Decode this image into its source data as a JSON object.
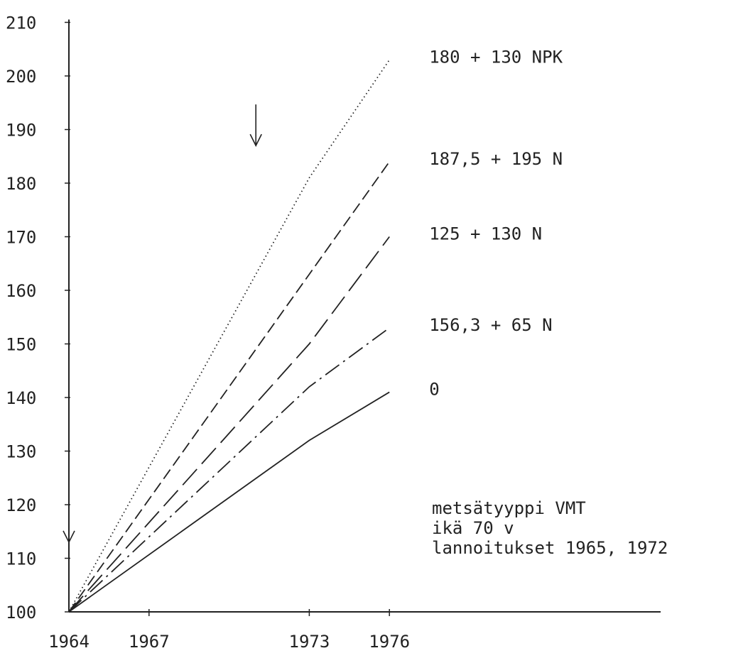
{
  "chart_data": {
    "type": "line",
    "title": "",
    "xlabel": "",
    "ylabel": "",
    "xlim": [
      1964,
      1983
    ],
    "ylim": [
      100,
      210
    ],
    "x_ticks": [
      1964,
      1967,
      1973,
      1976
    ],
    "y_ticks": [
      100,
      110,
      120,
      130,
      140,
      150,
      160,
      170,
      180,
      190,
      200,
      210
    ],
    "grid": false,
    "x": [
      1964,
      1973,
      1976
    ],
    "series": [
      {
        "name": "180 + 130 NPK",
        "values": [
          100,
          181,
          203
        ],
        "line_style": "dotted"
      },
      {
        "name": "187,5 + 195 N",
        "values": [
          100,
          163,
          184
        ],
        "line_style": "dashed"
      },
      {
        "name": "125 + 130 N",
        "values": [
          100,
          150,
          170
        ],
        "line_style": "long-dash"
      },
      {
        "name": "156,3 + 65 N",
        "values": [
          100,
          142,
          153
        ],
        "line_style": "dash-dot"
      },
      {
        "name": "0",
        "values": [
          100,
          132,
          141
        ],
        "line_style": "solid"
      }
    ],
    "annotations": {
      "note_lines": [
        "metsätyyppi VMT",
        "ikä 70 v",
        "lannoitukset 1965, 1972"
      ],
      "fertilization_arrows": [
        {
          "x": 1964,
          "y": 113
        },
        {
          "x": 1971,
          "y": 187
        }
      ]
    }
  }
}
